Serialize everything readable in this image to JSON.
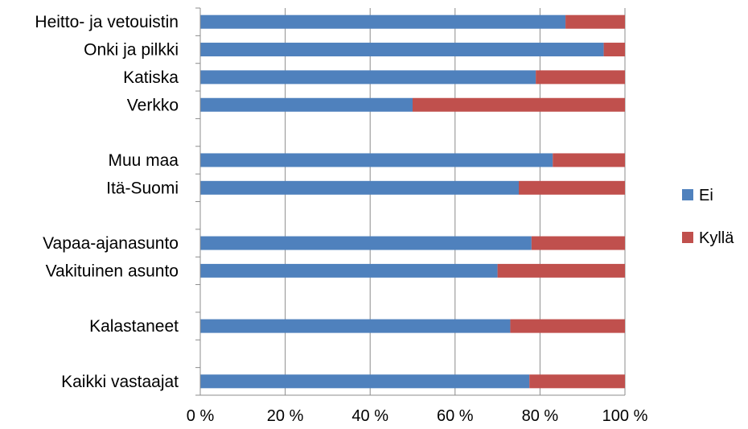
{
  "chart_data": {
    "type": "bar",
    "orientation": "horizontal",
    "stacked": "percent",
    "categories": [
      "Heitto- ja vetouistin",
      "Onki ja pilkki",
      "Katiska",
      "Verkko",
      "",
      "Muu maa",
      "Itä-Suomi",
      "",
      "Vapaa-ajanasunto",
      "Vakituinen asunto",
      "",
      "Kalastaneet",
      "",
      "Kaikki vastaajat"
    ],
    "series": [
      {
        "name": "Ei",
        "color": "#4f81bd",
        "values": [
          86,
          95,
          79,
          50,
          null,
          83,
          75,
          null,
          78,
          70,
          null,
          73,
          null,
          77.5
        ]
      },
      {
        "name": "Kyllä",
        "color": "#c0504d",
        "values": [
          14,
          5,
          21,
          50,
          null,
          17,
          25,
          null,
          22,
          30,
          null,
          27,
          null,
          22.5
        ]
      }
    ],
    "xlim": [
      0,
      100
    ],
    "xticks": [
      "0 %",
      "20 %",
      "40 %",
      "60 %",
      "80 %",
      "100 %"
    ],
    "grid": "vertical",
    "legend_position": "right"
  }
}
